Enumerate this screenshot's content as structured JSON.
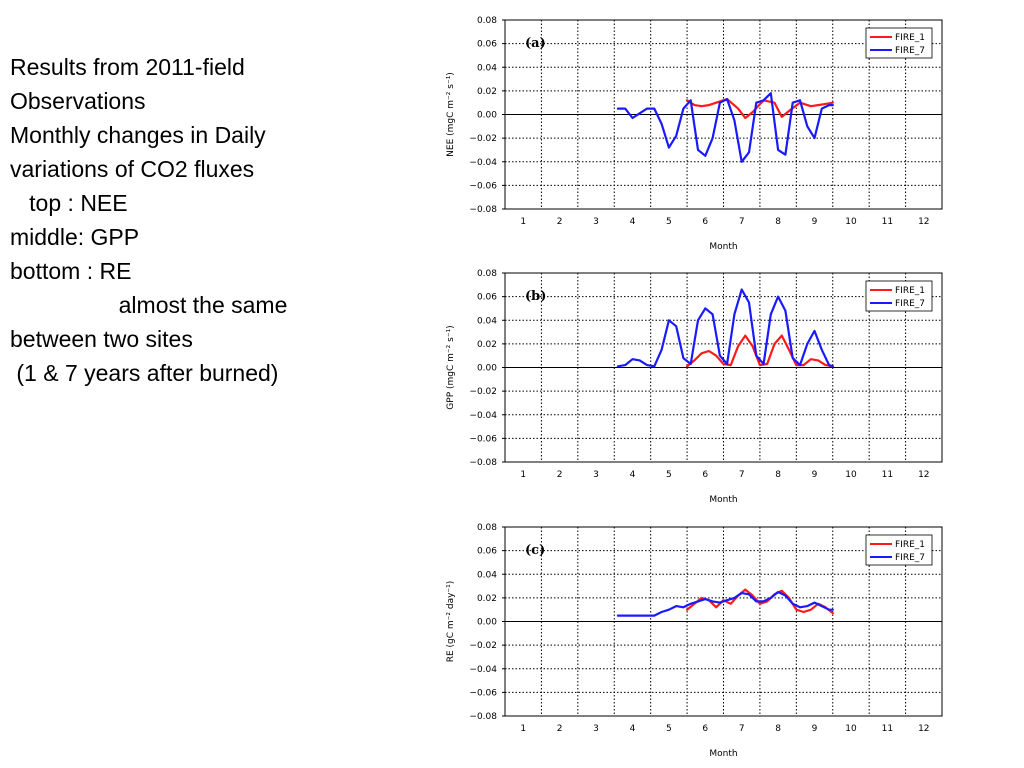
{
  "slide": {
    "lines": [
      "Results from 2011-field",
      "Observations",
      "",
      "",
      "Monthly changes in Daily",
      "variations of CO2 fluxes",
      "",
      "   top : NEE",
      "",
      "middle: GPP",
      "",
      "bottom : RE",
      "                 almost the same",
      "between two sites",
      " (1 & 7 years after burned)"
    ]
  },
  "colors": {
    "fire1": "#ff1a1a",
    "fire7": "#1a1aff"
  },
  "chart_data": [
    {
      "type": "line",
      "panel_label": "(a)",
      "ylabel": "NEE (mgC m⁻² s⁻¹)",
      "xlabel": "Month",
      "ylim": [
        -0.08,
        0.08
      ],
      "xlim": [
        0.5,
        12.5
      ],
      "yticks": [
        "0.08",
        "0.06",
        "0.04",
        "0.02",
        "0.00",
        "−0.02",
        "−0.04",
        "−0.06",
        "−0.08"
      ],
      "xticks": [
        "1",
        "2",
        "3",
        "4",
        "5",
        "6",
        "7",
        "8",
        "9",
        "10",
        "11",
        "12"
      ],
      "grid": true,
      "legend": "top-right",
      "series": [
        {
          "name": "FIRE_1",
          "x": [
            5.5,
            5.7,
            5.9,
            6.1,
            6.3,
            6.6,
            6.9,
            7.1,
            7.3,
            7.6,
            7.9,
            8.1,
            8.3,
            8.6,
            8.9,
            9.1,
            9.3,
            9.5
          ],
          "y": [
            0.012,
            0.008,
            0.007,
            0.008,
            0.01,
            0.013,
            0.005,
            -0.003,
            0.002,
            0.012,
            0.01,
            -0.002,
            0.003,
            0.01,
            0.007,
            0.008,
            0.009,
            0.01
          ]
        },
        {
          "name": "FIRE_7",
          "x": [
            3.6,
            3.8,
            4.0,
            4.2,
            4.4,
            4.6,
            4.8,
            5.0,
            5.2,
            5.4,
            5.6,
            5.8,
            6.0,
            6.2,
            6.4,
            6.6,
            6.8,
            7.0,
            7.2,
            7.4,
            7.6,
            7.8,
            8.0,
            8.2,
            8.4,
            8.6,
            8.8,
            9.0,
            9.2,
            9.4,
            9.5
          ],
          "y": [
            0.005,
            0.005,
            -0.003,
            0.001,
            0.005,
            0.005,
            -0.008,
            -0.028,
            -0.018,
            0.005,
            0.012,
            -0.03,
            -0.035,
            -0.02,
            0.01,
            0.013,
            -0.005,
            -0.04,
            -0.032,
            0.01,
            0.012,
            0.018,
            -0.03,
            -0.034,
            0.01,
            0.012,
            -0.01,
            -0.02,
            0.005,
            0.008,
            0.008
          ]
        }
      ]
    },
    {
      "type": "line",
      "panel_label": "(b)",
      "ylabel": "GPP (mgC m⁻² s⁻¹)",
      "xlabel": "Month",
      "ylim": [
        -0.08,
        0.08
      ],
      "xlim": [
        0.5,
        12.5
      ],
      "yticks": [
        "0.08",
        "0.06",
        "0.04",
        "0.02",
        "0.00",
        "−0.02",
        "−0.04",
        "−0.06",
        "−0.08"
      ],
      "xticks": [
        "1",
        "2",
        "3",
        "4",
        "5",
        "6",
        "7",
        "8",
        "9",
        "10",
        "11",
        "12"
      ],
      "grid": true,
      "legend": "top-right",
      "series": [
        {
          "name": "FIRE_1",
          "x": [
            5.5,
            5.7,
            5.9,
            6.1,
            6.3,
            6.5,
            6.7,
            6.9,
            7.1,
            7.3,
            7.5,
            7.7,
            7.9,
            8.1,
            8.3,
            8.5,
            8.7,
            8.9,
            9.1,
            9.3,
            9.5
          ],
          "y": [
            0.001,
            0.006,
            0.012,
            0.014,
            0.01,
            0.003,
            0.002,
            0.018,
            0.027,
            0.018,
            0.002,
            0.003,
            0.02,
            0.027,
            0.015,
            0.002,
            0.002,
            0.007,
            0.006,
            0.002,
            0.001
          ]
        },
        {
          "name": "FIRE_7",
          "x": [
            3.6,
            3.8,
            4.0,
            4.2,
            4.4,
            4.6,
            4.8,
            5.0,
            5.2,
            5.4,
            5.6,
            5.8,
            6.0,
            6.2,
            6.4,
            6.6,
            6.8,
            7.0,
            7.2,
            7.4,
            7.6,
            7.8,
            8.0,
            8.2,
            8.4,
            8.6,
            8.8,
            9.0,
            9.2,
            9.4,
            9.5
          ],
          "y": [
            0.001,
            0.002,
            0.007,
            0.006,
            0.002,
            0.001,
            0.015,
            0.04,
            0.035,
            0.008,
            0.003,
            0.04,
            0.05,
            0.045,
            0.01,
            0.003,
            0.045,
            0.066,
            0.055,
            0.01,
            0.003,
            0.045,
            0.06,
            0.048,
            0.008,
            0.002,
            0.02,
            0.031,
            0.015,
            0.002,
            0.001
          ]
        }
      ]
    },
    {
      "type": "line",
      "panel_label": "(c)",
      "ylabel": "RE (gC m⁻² day⁻¹)",
      "xlabel": "Month",
      "ylim": [
        -0.08,
        0.08
      ],
      "xlim": [
        0.5,
        12.5
      ],
      "yticks": [
        "0.08",
        "0.06",
        "0.04",
        "0.02",
        "0.00",
        "−0.02",
        "−0.04",
        "−0.06",
        "−0.08"
      ],
      "xticks": [
        "1",
        "2",
        "3",
        "4",
        "5",
        "6",
        "7",
        "8",
        "9",
        "10",
        "11",
        "12"
      ],
      "grid": true,
      "legend": "top-right",
      "series": [
        {
          "name": "FIRE_1",
          "x": [
            5.5,
            5.7,
            5.9,
            6.1,
            6.3,
            6.5,
            6.7,
            6.9,
            7.1,
            7.3,
            7.5,
            7.7,
            7.9,
            8.1,
            8.3,
            8.5,
            8.7,
            8.9,
            9.1,
            9.3,
            9.5
          ],
          "y": [
            0.01,
            0.015,
            0.02,
            0.018,
            0.012,
            0.018,
            0.015,
            0.022,
            0.027,
            0.022,
            0.015,
            0.017,
            0.023,
            0.026,
            0.02,
            0.01,
            0.008,
            0.01,
            0.015,
            0.012,
            0.007
          ]
        },
        {
          "name": "FIRE_7",
          "x": [
            3.6,
            3.8,
            4.0,
            4.2,
            4.4,
            4.6,
            4.8,
            5.0,
            5.2,
            5.4,
            5.6,
            5.8,
            6.0,
            6.2,
            6.4,
            6.6,
            6.8,
            7.0,
            7.2,
            7.4,
            7.6,
            7.8,
            8.0,
            8.2,
            8.4,
            8.6,
            8.8,
            9.0,
            9.2,
            9.4,
            9.5
          ],
          "y": [
            0.005,
            0.005,
            0.005,
            0.005,
            0.005,
            0.005,
            0.008,
            0.01,
            0.013,
            0.012,
            0.015,
            0.017,
            0.019,
            0.017,
            0.016,
            0.018,
            0.02,
            0.024,
            0.023,
            0.017,
            0.017,
            0.02,
            0.025,
            0.022,
            0.015,
            0.012,
            0.013,
            0.016,
            0.013,
            0.01,
            0.01
          ]
        }
      ]
    }
  ]
}
